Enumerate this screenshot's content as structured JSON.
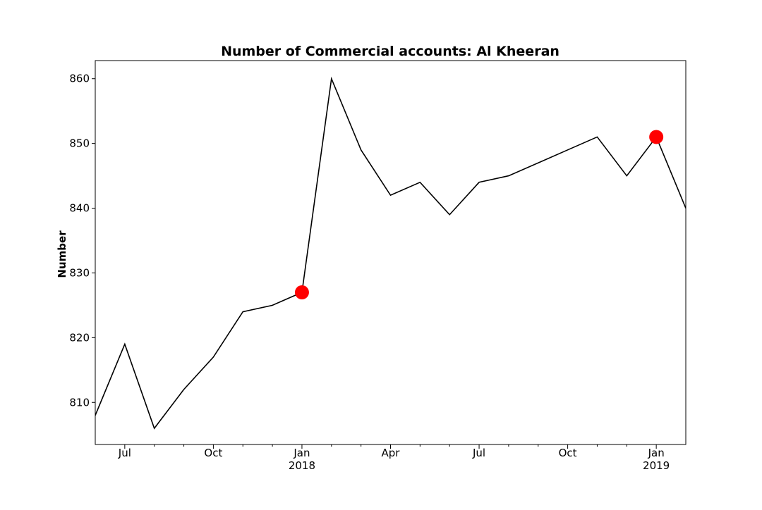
{
  "chart_data": {
    "type": "line",
    "title": "Number of Commercial accounts: Al Kheeran",
    "xlabel": "",
    "ylabel": "Number",
    "x": [
      "2017-06",
      "2017-07",
      "2017-08",
      "2017-09",
      "2017-10",
      "2017-11",
      "2017-12",
      "2018-01",
      "2018-02",
      "2018-03",
      "2018-04",
      "2018-05",
      "2018-06",
      "2018-07",
      "2018-08",
      "2018-09",
      "2018-10",
      "2018-11",
      "2018-12",
      "2019-01",
      "2019-02"
    ],
    "series": [
      {
        "values": [
          808,
          819,
          806,
          812,
          817,
          824,
          825,
          827,
          860,
          849,
          842,
          844,
          839,
          844,
          845,
          847,
          849,
          851,
          845,
          851,
          840
        ],
        "color": "#000000"
      }
    ],
    "highlighted_points": [
      {
        "x": "2018-01",
        "y": 827,
        "color": "#ff0000"
      },
      {
        "x": "2019-01",
        "y": 851,
        "color": "#ff0000"
      }
    ],
    "ylim": [
      803.5,
      862.8
    ],
    "y_ticks": [
      810,
      820,
      830,
      840,
      850,
      860
    ],
    "x_ticks": [
      {
        "x": "2017-07",
        "label": "Jul",
        "sublabel": ""
      },
      {
        "x": "2017-10",
        "label": "Oct",
        "sublabel": ""
      },
      {
        "x": "2018-01",
        "label": "Jan",
        "sublabel": "2018"
      },
      {
        "x": "2018-04",
        "label": "Apr",
        "sublabel": ""
      },
      {
        "x": "2018-07",
        "label": "Jul",
        "sublabel": ""
      },
      {
        "x": "2018-10",
        "label": "Oct",
        "sublabel": ""
      },
      {
        "x": "2019-01",
        "label": "Jan",
        "sublabel": "2019"
      }
    ],
    "minor_x_ticks": [
      "2017-08",
      "2017-09",
      "2017-11",
      "2017-12",
      "2018-02",
      "2018-03",
      "2018-05",
      "2018-06",
      "2018-08",
      "2018-09",
      "2018-11",
      "2018-12"
    ],
    "grid": false,
    "legend": "none"
  }
}
